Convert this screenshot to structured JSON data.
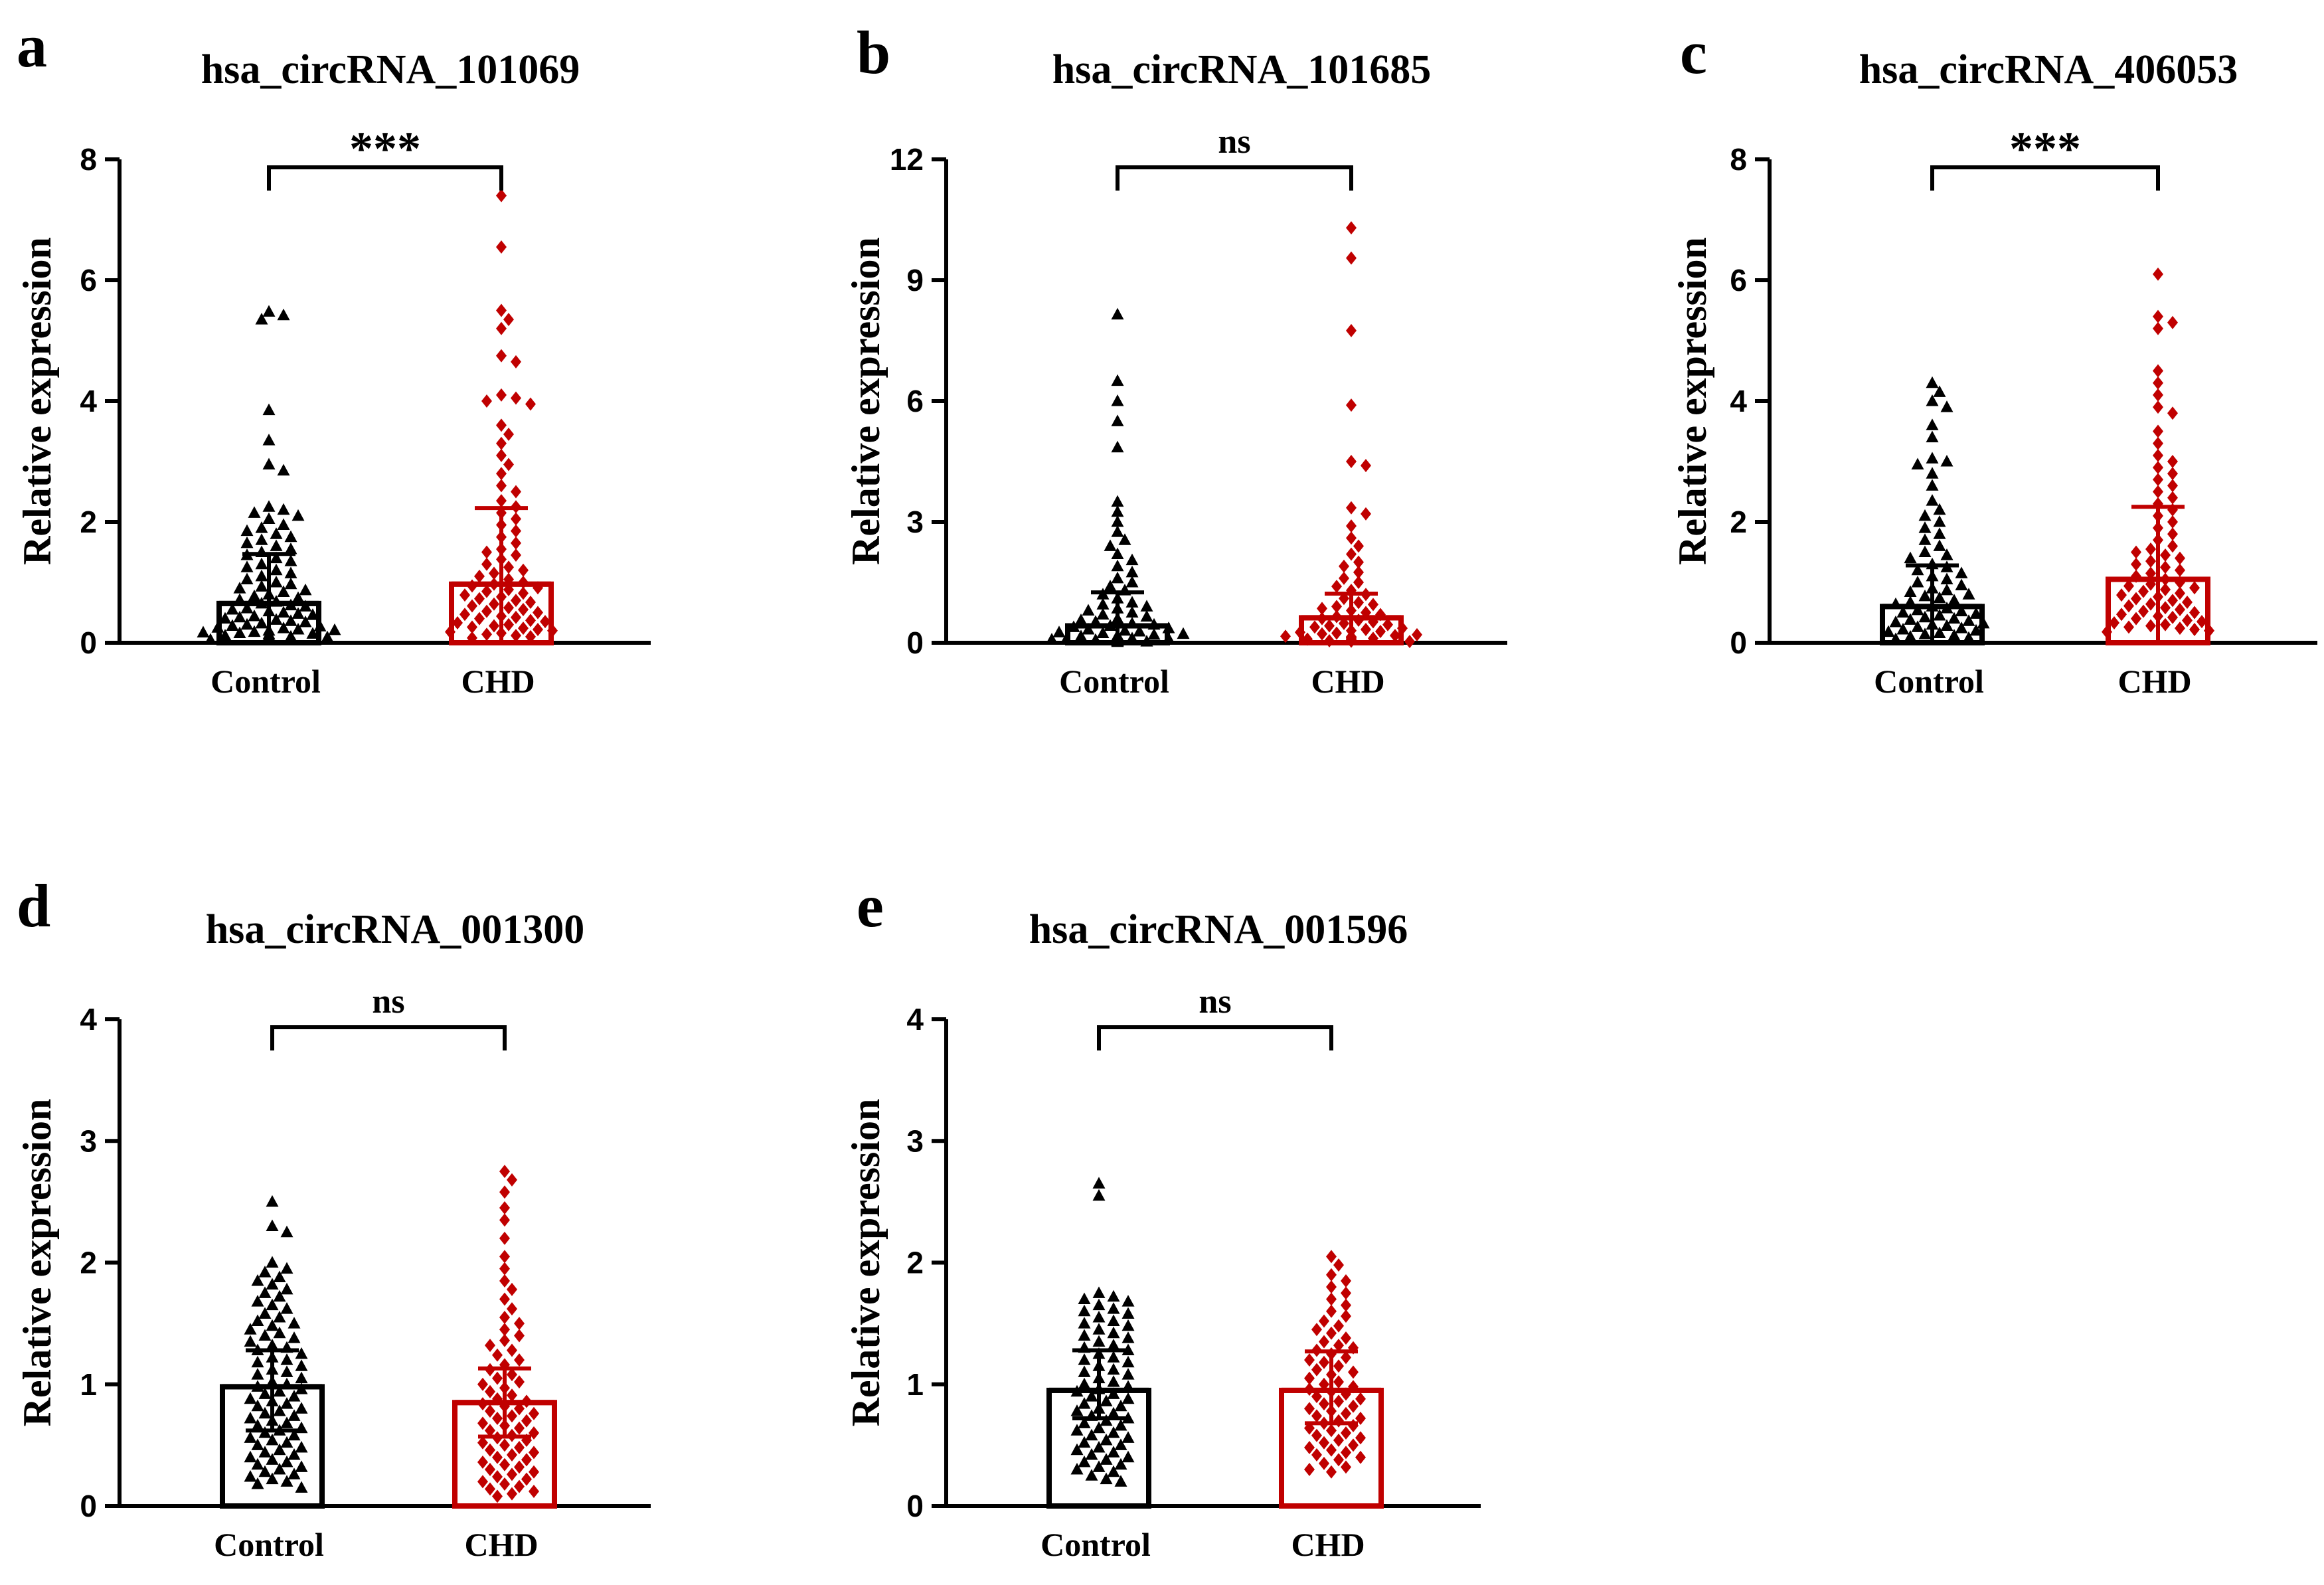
{
  "colors": {
    "control": "#000000",
    "chd": "#c00000"
  },
  "chart_data": [
    {
      "type": "bar",
      "panel": "a",
      "title": "hsa_circRNA_101069",
      "ylabel": "Relative expression",
      "ylim": [
        0,
        8
      ],
      "yticks": [
        0,
        2,
        4,
        6,
        8
      ],
      "categories": [
        "Control",
        "CHD"
      ],
      "means": [
        0.65,
        0.97
      ],
      "error_upper": [
        1.47,
        2.23
      ],
      "error_lower": [
        0.0,
        0.0
      ],
      "significance": "***",
      "points": {
        "Control": [
          5.48,
          5.42,
          5.35,
          3.85,
          3.35,
          2.95,
          2.85,
          2.25,
          2.2,
          2.15,
          2.1,
          2.05,
          1.95,
          1.9,
          1.85,
          1.8,
          1.75,
          1.7,
          1.65,
          1.6,
          1.55,
          1.5,
          1.45,
          1.4,
          1.35,
          1.3,
          1.25,
          1.2,
          1.15,
          1.1,
          1.05,
          1.0,
          0.97,
          0.93,
          0.9,
          0.87,
          0.84,
          0.8,
          0.77,
          0.74,
          0.71,
          0.68,
          0.65,
          0.62,
          0.6,
          0.57,
          0.55,
          0.52,
          0.5,
          0.48,
          0.46,
          0.44,
          0.42,
          0.4,
          0.38,
          0.36,
          0.34,
          0.32,
          0.3,
          0.28,
          0.27,
          0.25,
          0.24,
          0.22,
          0.21,
          0.2,
          0.18,
          0.17,
          0.16,
          0.15,
          0.14,
          0.12,
          0.11,
          0.1,
          0.09,
          0.08,
          0.07,
          0.06,
          0.05
        ],
        "CHD": [
          7.4,
          6.55,
          5.5,
          5.35,
          5.2,
          4.75,
          4.65,
          4.1,
          4.05,
          4.0,
          3.95,
          3.6,
          3.45,
          3.3,
          3.1,
          2.95,
          2.8,
          2.6,
          2.5,
          2.35,
          2.25,
          2.15,
          2.05,
          1.95,
          1.85,
          1.75,
          1.65,
          1.55,
          1.5,
          1.45,
          1.38,
          1.3,
          1.25,
          1.2,
          1.15,
          1.1,
          1.05,
          1.0,
          0.97,
          0.94,
          0.91,
          0.88,
          0.85,
          0.82,
          0.79,
          0.76,
          0.73,
          0.7,
          0.67,
          0.64,
          0.61,
          0.58,
          0.55,
          0.52,
          0.5,
          0.47,
          0.44,
          0.42,
          0.4,
          0.37,
          0.35,
          0.33,
          0.3,
          0.28,
          0.26,
          0.24,
          0.22,
          0.2,
          0.18,
          0.16,
          0.14,
          0.12,
          0.1,
          0.08
        ]
      }
    },
    {
      "type": "bar",
      "panel": "b",
      "title": "hsa_circRNA_101685",
      "ylabel": "Relative expression",
      "ylim": [
        0,
        12
      ],
      "yticks": [
        0,
        3,
        6,
        9,
        12
      ],
      "categories": [
        "Control",
        "CHD"
      ],
      "means": [
        0.42,
        0.62
      ],
      "error_upper": [
        1.25,
        1.22
      ],
      "error_lower": [
        0.0,
        0.0
      ],
      "significance": "ns",
      "points": {
        "Control": [
          8.15,
          6.5,
          6.0,
          5.5,
          4.85,
          3.5,
          3.25,
          3.0,
          2.75,
          2.55,
          2.4,
          2.2,
          2.05,
          1.9,
          1.75,
          1.6,
          1.5,
          1.4,
          1.3,
          1.2,
          1.1,
          1.0,
          0.95,
          0.9,
          0.85,
          0.8,
          0.75,
          0.7,
          0.65,
          0.6,
          0.56,
          0.52,
          0.48,
          0.45,
          0.42,
          0.39,
          0.36,
          0.33,
          0.3,
          0.28,
          0.26,
          0.24,
          0.22,
          0.2,
          0.18,
          0.16,
          0.15,
          0.14,
          0.13,
          0.12,
          0.11,
          0.1,
          0.09,
          0.08,
          0.07,
          0.06,
          0.05,
          0.04,
          0.03,
          0.02
        ],
        "CHD": [
          10.3,
          9.55,
          7.75,
          5.9,
          4.5,
          4.4,
          3.35,
          3.2,
          2.9,
          2.6,
          2.4,
          2.2,
          2.0,
          1.9,
          1.75,
          1.6,
          1.5,
          1.4,
          1.3,
          1.2,
          1.1,
          1.0,
          0.95,
          0.9,
          0.85,
          0.8,
          0.75,
          0.7,
          0.65,
          0.6,
          0.56,
          0.52,
          0.48,
          0.45,
          0.42,
          0.39,
          0.36,
          0.33,
          0.3,
          0.28,
          0.26,
          0.24,
          0.22,
          0.2,
          0.18,
          0.16,
          0.15,
          0.14,
          0.13,
          0.12,
          0.11,
          0.1,
          0.09,
          0.08,
          0.07,
          0.06,
          0.05,
          0.04,
          0.03
        ]
      }
    },
    {
      "type": "bar",
      "panel": "c",
      "title": "hsa_circRNA_406053",
      "ylabel": "Relative expression",
      "ylim": [
        0,
        8
      ],
      "yticks": [
        0,
        2,
        4,
        6,
        8
      ],
      "categories": [
        "Control",
        "CHD"
      ],
      "means": [
        0.6,
        1.05
      ],
      "error_upper": [
        1.28,
        2.25
      ],
      "error_lower": [
        0.0,
        0.0
      ],
      "significance": "***",
      "points": {
        "Control": [
          4.3,
          4.15,
          4.0,
          3.9,
          3.6,
          3.4,
          3.05,
          3.0,
          2.95,
          2.8,
          2.6,
          2.35,
          2.2,
          2.1,
          2.0,
          1.9,
          1.8,
          1.7,
          1.6,
          1.5,
          1.45,
          1.4,
          1.3,
          1.25,
          1.2,
          1.15,
          1.1,
          1.05,
          1.0,
          0.95,
          0.9,
          0.87,
          0.84,
          0.8,
          0.77,
          0.74,
          0.7,
          0.67,
          0.64,
          0.6,
          0.57,
          0.54,
          0.52,
          0.5,
          0.48,
          0.45,
          0.42,
          0.4,
          0.38,
          0.36,
          0.34,
          0.32,
          0.3,
          0.28,
          0.26,
          0.24,
          0.22,
          0.2,
          0.18,
          0.16,
          0.14,
          0.12,
          0.1,
          0.08,
          0.06
        ],
        "CHD": [
          6.1,
          5.4,
          5.3,
          5.2,
          4.5,
          4.3,
          4.1,
          3.9,
          3.8,
          3.5,
          3.3,
          3.1,
          3.0,
          2.9,
          2.8,
          2.7,
          2.6,
          2.5,
          2.4,
          2.3,
          2.2,
          2.1,
          2.0,
          1.9,
          1.8,
          1.7,
          1.6,
          1.55,
          1.5,
          1.45,
          1.4,
          1.35,
          1.3,
          1.25,
          1.2,
          1.15,
          1.1,
          1.05,
          1.0,
          0.97,
          0.94,
          0.91,
          0.88,
          0.85,
          0.82,
          0.79,
          0.76,
          0.73,
          0.7,
          0.67,
          0.64,
          0.61,
          0.58,
          0.55,
          0.52,
          0.5,
          0.47,
          0.44,
          0.42,
          0.4,
          0.37,
          0.35,
          0.33,
          0.3,
          0.28,
          0.26,
          0.24,
          0.22,
          0.2,
          0.18
        ]
      }
    },
    {
      "type": "bar",
      "panel": "d",
      "title": "hsa_circRNA_001300",
      "ylabel": "Relative expression",
      "ylim": [
        0,
        4
      ],
      "yticks": [
        0,
        1,
        2,
        3,
        4
      ],
      "categories": [
        "Control",
        "CHD"
      ],
      "means": [
        0.98,
        0.85
      ],
      "error_upper": [
        1.28,
        1.13
      ],
      "error_lower": [
        0.62,
        0.57
      ],
      "significance": "ns",
      "points": {
        "Control": [
          2.5,
          2.3,
          2.25,
          2.0,
          1.95,
          1.92,
          1.88,
          1.85,
          1.82,
          1.78,
          1.75,
          1.72,
          1.68,
          1.65,
          1.62,
          1.58,
          1.55,
          1.52,
          1.5,
          1.48,
          1.45,
          1.42,
          1.4,
          1.38,
          1.35,
          1.32,
          1.3,
          1.28,
          1.25,
          1.22,
          1.2,
          1.18,
          1.15,
          1.12,
          1.1,
          1.08,
          1.05,
          1.02,
          1.0,
          0.98,
          0.96,
          0.94,
          0.92,
          0.9,
          0.88,
          0.86,
          0.84,
          0.82,
          0.8,
          0.78,
          0.76,
          0.74,
          0.72,
          0.7,
          0.68,
          0.66,
          0.64,
          0.62,
          0.6,
          0.58,
          0.56,
          0.54,
          0.52,
          0.5,
          0.48,
          0.46,
          0.44,
          0.42,
          0.4,
          0.38,
          0.36,
          0.34,
          0.32,
          0.3,
          0.28,
          0.26,
          0.24,
          0.22,
          0.2,
          0.18,
          0.15
        ],
        "CHD": [
          2.75,
          2.68,
          2.58,
          2.45,
          2.35,
          2.2,
          2.05,
          1.95,
          1.85,
          1.78,
          1.7,
          1.62,
          1.55,
          1.5,
          1.45,
          1.4,
          1.36,
          1.32,
          1.28,
          1.24,
          1.2,
          1.16,
          1.12,
          1.08,
          1.05,
          1.02,
          1.0,
          0.97,
          0.94,
          0.91,
          0.88,
          0.86,
          0.84,
          0.82,
          0.8,
          0.78,
          0.76,
          0.74,
          0.72,
          0.7,
          0.68,
          0.66,
          0.64,
          0.62,
          0.6,
          0.58,
          0.56,
          0.54,
          0.52,
          0.5,
          0.48,
          0.46,
          0.44,
          0.42,
          0.4,
          0.38,
          0.36,
          0.34,
          0.32,
          0.3,
          0.28,
          0.26,
          0.24,
          0.22,
          0.2,
          0.18,
          0.16,
          0.14,
          0.12,
          0.1,
          0.08
        ]
      }
    },
    {
      "type": "bar",
      "panel": "e",
      "title": "hsa_circRNA_001596",
      "ylabel": "Relative expression",
      "ylim": [
        0,
        4
      ],
      "yticks": [
        0,
        1,
        2,
        3,
        4
      ],
      "categories": [
        "Control",
        "CHD"
      ],
      "means": [
        0.95,
        0.95
      ],
      "error_upper": [
        1.28,
        1.27
      ],
      "error_lower": [
        0.72,
        0.68
      ],
      "significance": "ns",
      "points": {
        "Control": [
          2.65,
          2.55,
          1.75,
          1.72,
          1.7,
          1.68,
          1.65,
          1.62,
          1.6,
          1.58,
          1.55,
          1.52,
          1.5,
          1.48,
          1.45,
          1.42,
          1.4,
          1.38,
          1.35,
          1.32,
          1.3,
          1.28,
          1.25,
          1.22,
          1.2,
          1.18,
          1.15,
          1.12,
          1.1,
          1.08,
          1.05,
          1.02,
          1.0,
          0.98,
          0.96,
          0.94,
          0.92,
          0.9,
          0.88,
          0.86,
          0.84,
          0.82,
          0.8,
          0.78,
          0.76,
          0.74,
          0.72,
          0.7,
          0.68,
          0.66,
          0.64,
          0.62,
          0.6,
          0.58,
          0.56,
          0.54,
          0.52,
          0.5,
          0.48,
          0.46,
          0.44,
          0.42,
          0.4,
          0.38,
          0.36,
          0.34,
          0.32,
          0.3,
          0.28,
          0.25,
          0.22,
          0.2
        ],
        "CHD": [
          2.05,
          1.98,
          1.9,
          1.85,
          1.8,
          1.75,
          1.7,
          1.65,
          1.6,
          1.56,
          1.52,
          1.48,
          1.45,
          1.42,
          1.38,
          1.35,
          1.32,
          1.3,
          1.28,
          1.25,
          1.22,
          1.2,
          1.18,
          1.15,
          1.12,
          1.1,
          1.08,
          1.05,
          1.02,
          1.0,
          0.98,
          0.96,
          0.94,
          0.92,
          0.9,
          0.88,
          0.86,
          0.84,
          0.82,
          0.8,
          0.78,
          0.76,
          0.74,
          0.72,
          0.7,
          0.68,
          0.66,
          0.64,
          0.62,
          0.6,
          0.58,
          0.56,
          0.54,
          0.52,
          0.5,
          0.48,
          0.46,
          0.44,
          0.42,
          0.4,
          0.38,
          0.35,
          0.32,
          0.3,
          0.28
        ]
      }
    }
  ]
}
